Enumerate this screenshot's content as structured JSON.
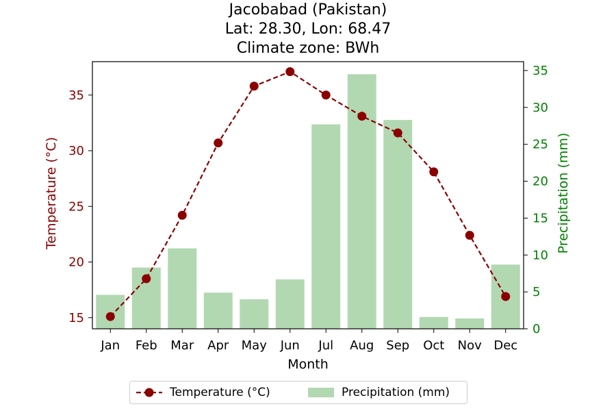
{
  "chart_data": {
    "type": "bar+line",
    "title": [
      "Jacobabad (Pakistan)",
      "Lat: 28.30, Lon: 68.47",
      "Climate zone: BWh"
    ],
    "xlabel": "Month",
    "categories": [
      "Jan",
      "Feb",
      "Mar",
      "Apr",
      "May",
      "Jun",
      "Jul",
      "Aug",
      "Sep",
      "Oct",
      "Nov",
      "Dec"
    ],
    "series": [
      {
        "name": "Temperature (°C)",
        "type": "line",
        "axis": "left",
        "color": "#8b0000",
        "values": [
          15.1,
          18.5,
          24.2,
          30.7,
          35.8,
          37.1,
          35.0,
          33.1,
          31.6,
          28.1,
          22.4,
          16.9
        ]
      },
      {
        "name": "Precipitation (mm)",
        "type": "bar",
        "axis": "right",
        "color": "#b2d8b2",
        "values": [
          4.6,
          8.3,
          10.9,
          4.9,
          4.0,
          6.7,
          27.7,
          34.5,
          28.3,
          1.6,
          1.4,
          8.7
        ]
      }
    ],
    "y_left": {
      "label": "Temperature (°C)",
      "lim": [
        14,
        38
      ],
      "ticks": [
        15,
        20,
        25,
        30,
        35
      ],
      "color": "#8b0000"
    },
    "y_right": {
      "label": "Precipitation (mm)",
      "lim": [
        0,
        36.2
      ],
      "ticks": [
        0,
        5,
        10,
        15,
        20,
        25,
        30,
        35
      ],
      "color": "#008000"
    },
    "grid": false,
    "legend": "bottom-center"
  }
}
